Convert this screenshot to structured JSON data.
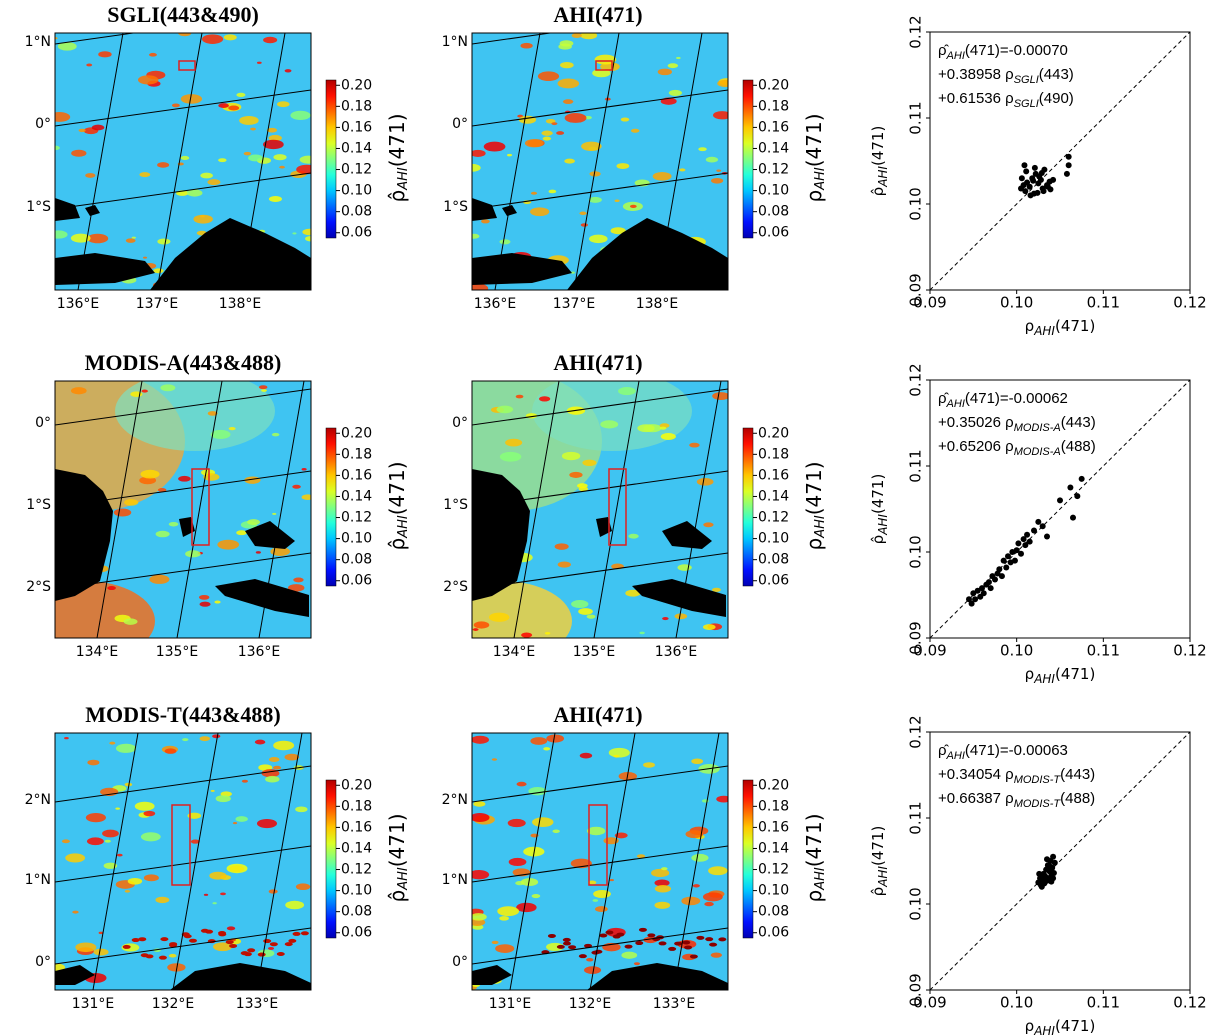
{
  "chart_data": [
    {
      "type": "map",
      "title": "SGLI(443&490)",
      "lat_labels": [
        "1°N",
        "0°",
        "1°S"
      ],
      "lon_labels": [
        "136°E",
        "137°E",
        "138°E"
      ],
      "colorbar": {
        "label": {
          "symbol": "ρ̂",
          "sub": "AHI",
          "tail": "(471)"
        },
        "colormap": "jet",
        "lim": [
          0.055,
          0.205
        ],
        "ticks": [
          0.06,
          0.08,
          {
            "value": 0.1,
            "label": "0.10"
          },
          0.12,
          0.14,
          0.16,
          0.18,
          {
            "value": 0.2,
            "label": "0.20"
          }
        ]
      }
    },
    {
      "type": "map",
      "title": "AHI(471)",
      "lat_labels": [
        "1°N",
        "0°",
        "1°S"
      ],
      "lon_labels": [
        "136°E",
        "137°E",
        "138°E"
      ],
      "colorbar": {
        "label": {
          "symbol": "ρ",
          "sub": "AHI",
          "tail": "(471)"
        },
        "colormap": "jet",
        "lim": [
          0.055,
          0.205
        ],
        "ticks": [
          0.06,
          0.08,
          {
            "value": 0.1,
            "label": "0.10"
          },
          0.12,
          0.14,
          0.16,
          0.18,
          {
            "value": 0.2,
            "label": "0.20"
          }
        ]
      }
    },
    {
      "type": "scatter",
      "color": "#000000",
      "identity_line": true,
      "xlabel": {
        "symbol": "ρ",
        "sub": "AHI",
        "tail": "(471)"
      },
      "ylabel": {
        "symbol": "ρ̂",
        "sub": "AHI",
        "tail": "(471)"
      },
      "annotation": [
        {
          "symbol": "ρ̂",
          "sub": "AHI",
          "tail": "(471)=-0.00070"
        },
        {
          "symbol": "+0.38958 ρ",
          "sub": "SGLI",
          "tail": "(443)"
        },
        {
          "symbol": "+0.61536 ρ",
          "sub": "SGLI",
          "tail": "(490)"
        }
      ],
      "xlim": [
        0.09,
        0.12
      ],
      "ylim": [
        0.09,
        0.12
      ],
      "xticks": [
        0.09,
        {
          "value": 0.1,
          "label": "0.10"
        },
        0.11,
        0.12
      ],
      "yticks": [
        0.09,
        {
          "value": 0.1,
          "label": "0.10"
        },
        0.11,
        0.12
      ],
      "x": [
        0.1005,
        0.1008,
        0.101,
        0.1012,
        0.1015,
        0.1018,
        0.102,
        0.1022,
        0.1025,
        0.1028,
        0.103,
        0.1032,
        0.1035,
        0.1038,
        0.1006,
        0.1011,
        0.1016,
        0.1021,
        0.1026,
        0.1031,
        0.1036,
        0.1009,
        0.1019,
        0.1029,
        0.1039,
        0.1024,
        0.106,
        0.106,
        0.1058,
        0.1042
      ],
      "values": [
        0.1018,
        0.1022,
        0.1015,
        0.1025,
        0.102,
        0.103,
        0.1012,
        0.1035,
        0.1024,
        0.1028,
        0.1018,
        0.104,
        0.1022,
        0.1026,
        0.103,
        0.1038,
        0.101,
        0.1042,
        0.1032,
        0.1015,
        0.102,
        0.1045,
        0.1027,
        0.1036,
        0.1017,
        0.1013,
        0.1055,
        0.1045,
        0.1035,
        0.1028
      ]
    },
    {
      "type": "map",
      "title": "MODIS-A(443&488)",
      "lat_labels": [
        "0°",
        "1°S",
        "2°S"
      ],
      "lon_labels": [
        "134°E",
        "135°E",
        "136°E"
      ],
      "colorbar": {
        "label": {
          "symbol": "ρ̂",
          "sub": "AHI",
          "tail": "(471)"
        },
        "colormap": "jet",
        "lim": [
          0.055,
          0.205
        ],
        "ticks": [
          0.06,
          0.08,
          {
            "value": 0.1,
            "label": "0.10"
          },
          0.12,
          0.14,
          0.16,
          0.18,
          {
            "value": 0.2,
            "label": "0.20"
          }
        ]
      }
    },
    {
      "type": "map",
      "title": "AHI(471)",
      "lat_labels": [
        "0°",
        "1°S",
        "2°S"
      ],
      "lon_labels": [
        "134°E",
        "135°E",
        "136°E"
      ],
      "colorbar": {
        "label": {
          "symbol": "ρ",
          "sub": "AHI",
          "tail": "(471)"
        },
        "colormap": "jet",
        "lim": [
          0.055,
          0.205
        ],
        "ticks": [
          0.06,
          0.08,
          {
            "value": 0.1,
            "label": "0.10"
          },
          0.12,
          0.14,
          0.16,
          0.18,
          {
            "value": 0.2,
            "label": "0.20"
          }
        ]
      }
    },
    {
      "type": "scatter",
      "color": "#000000",
      "identity_line": true,
      "xlabel": {
        "symbol": "ρ",
        "sub": "AHI",
        "tail": "(471)"
      },
      "ylabel": {
        "symbol": "ρ̂",
        "sub": "AHI",
        "tail": "(471)"
      },
      "annotation": [
        {
          "symbol": "ρ̂",
          "sub": "AHI",
          "tail": "(471)=-0.00062"
        },
        {
          "symbol": "+0.35026 ρ",
          "sub": "MODIS-A",
          "tail": "(443)"
        },
        {
          "symbol": "+0.65206 ρ",
          "sub": "MODIS-A",
          "tail": "(488)"
        }
      ],
      "xlim": [
        0.09,
        0.12
      ],
      "ylim": [
        0.09,
        0.12
      ],
      "xticks": [
        0.09,
        {
          "value": 0.1,
          "label": "0.10"
        },
        0.11,
        0.12
      ],
      "yticks": [
        0.09,
        {
          "value": 0.1,
          "label": "0.10"
        },
        0.11,
        0.12
      ],
      "x": [
        0.0945,
        0.0948,
        0.095,
        0.0952,
        0.0955,
        0.0958,
        0.096,
        0.0962,
        0.0965,
        0.0968,
        0.097,
        0.0972,
        0.0975,
        0.0978,
        0.098,
        0.0983,
        0.0985,
        0.0988,
        0.099,
        0.0993,
        0.0995,
        0.0998,
        0.1,
        0.1002,
        0.1005,
        0.1008,
        0.101,
        0.1012,
        0.1015,
        0.102,
        0.1025,
        0.103,
        0.1035,
        0.105,
        0.1065,
        0.107,
        0.1075,
        0.1062
      ],
      "values": [
        0.0945,
        0.094,
        0.0952,
        0.0945,
        0.0955,
        0.0948,
        0.0958,
        0.0952,
        0.0962,
        0.0965,
        0.0958,
        0.0972,
        0.0968,
        0.0975,
        0.098,
        0.0972,
        0.099,
        0.0982,
        0.0995,
        0.0988,
        0.1,
        0.099,
        0.1002,
        0.101,
        0.0998,
        0.1015,
        0.1008,
        0.102,
        0.1012,
        0.1025,
        0.1035,
        0.103,
        0.1018,
        0.106,
        0.104,
        0.1065,
        0.1085,
        0.1075
      ]
    },
    {
      "type": "map",
      "title": "MODIS-T(443&488)",
      "lat_labels": [
        "2°N",
        "1°N",
        "0°"
      ],
      "lon_labels": [
        "131°E",
        "132°E",
        "133°E"
      ],
      "colorbar": {
        "label": {
          "symbol": "ρ̂",
          "sub": "AHI",
          "tail": "(471)"
        },
        "colormap": "jet",
        "lim": [
          0.055,
          0.205
        ],
        "ticks": [
          0.06,
          0.08,
          {
            "value": 0.1,
            "label": "0.10"
          },
          0.12,
          0.14,
          0.16,
          0.18,
          {
            "value": 0.2,
            "label": "0.20"
          }
        ]
      }
    },
    {
      "type": "map",
      "title": "AHI(471)",
      "lat_labels": [
        "2°N",
        "1°N",
        "0°"
      ],
      "lon_labels": [
        "131°E",
        "132°E",
        "133°E"
      ],
      "colorbar": {
        "label": {
          "symbol": "ρ",
          "sub": "AHI",
          "tail": "(471)"
        },
        "colormap": "jet",
        "lim": [
          0.055,
          0.205
        ],
        "ticks": [
          0.06,
          0.08,
          {
            "value": 0.1,
            "label": "0.10"
          },
          0.12,
          0.14,
          0.16,
          0.18,
          {
            "value": 0.2,
            "label": "0.20"
          }
        ]
      }
    },
    {
      "type": "scatter",
      "color": "#000000",
      "identity_line": true,
      "xlabel": {
        "symbol": "ρ",
        "sub": "AHI",
        "tail": "(471)"
      },
      "ylabel": {
        "symbol": "ρ̂",
        "sub": "AHI",
        "tail": "(471)"
      },
      "annotation": [
        {
          "symbol": "ρ̂",
          "sub": "AHI",
          "tail": "(471)=-0.00063"
        },
        {
          "symbol": "+0.34054 ρ",
          "sub": "MODIS-T",
          "tail": "(443)"
        },
        {
          "symbol": "+0.66387 ρ",
          "sub": "MODIS-T",
          "tail": "(488)"
        }
      ],
      "xlim": [
        0.09,
        0.12
      ],
      "ylim": [
        0.09,
        0.12
      ],
      "xticks": [
        0.09,
        {
          "value": 0.1,
          "label": "0.10"
        },
        0.11,
        0.12
      ],
      "yticks": [
        0.09,
        {
          "value": 0.1,
          "label": "0.10"
        },
        0.11,
        0.12
      ],
      "x": [
        0.1025,
        0.1027,
        0.1028,
        0.103,
        0.1031,
        0.1032,
        0.1033,
        0.1034,
        0.1035,
        0.1036,
        0.1037,
        0.1038,
        0.1039,
        0.104,
        0.1041,
        0.1042,
        0.1043,
        0.1044,
        0.1026,
        0.1029,
        0.1035,
        0.104,
        0.1038,
        0.1042
      ],
      "values": [
        0.1025,
        0.103,
        0.1022,
        0.1028,
        0.1035,
        0.1024,
        0.1032,
        0.104,
        0.1027,
        0.1045,
        0.103,
        0.1038,
        0.105,
        0.1033,
        0.1042,
        0.1055,
        0.1036,
        0.1048,
        0.1035,
        0.102,
        0.1052,
        0.1026,
        0.1044,
        0.103
      ]
    }
  ]
}
